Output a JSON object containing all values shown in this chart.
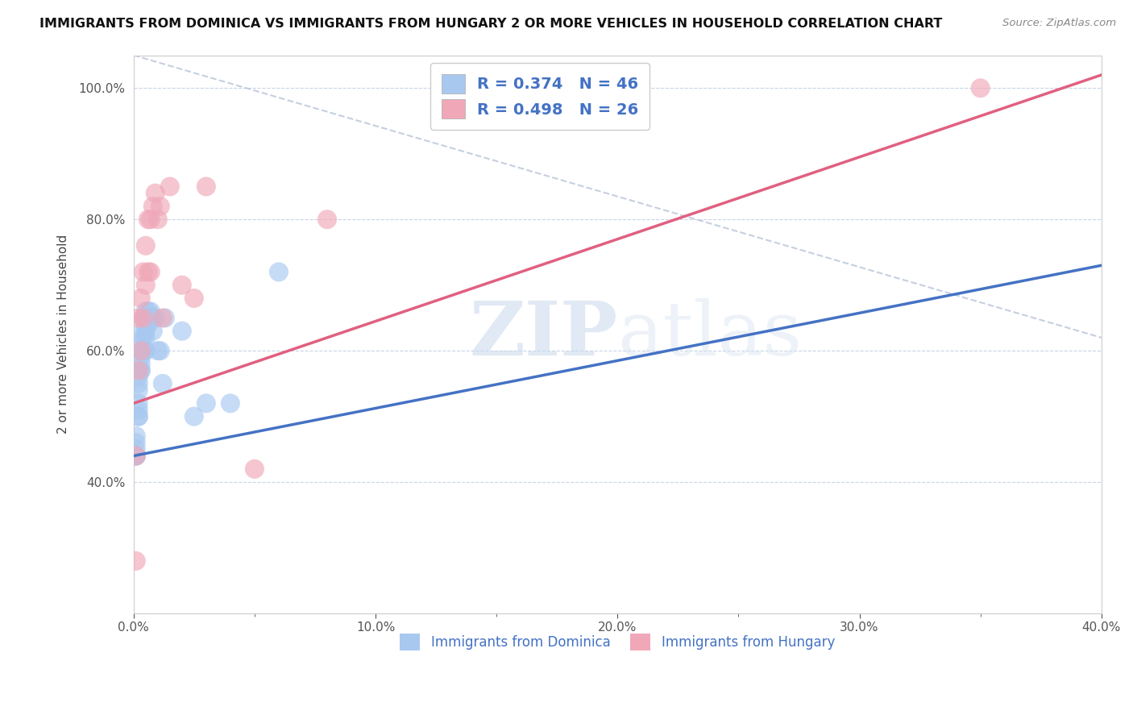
{
  "title": "IMMIGRANTS FROM DOMINICA VS IMMIGRANTS FROM HUNGARY 2 OR MORE VEHICLES IN HOUSEHOLD CORRELATION CHART",
  "source": "Source: ZipAtlas.com",
  "ylabel": "2 or more Vehicles in Household",
  "xlim": [
    0.0,
    0.4
  ],
  "ylim": [
    0.2,
    1.05
  ],
  "xtick_labels": [
    "0.0%",
    "10.0%",
    "20.0%",
    "30.0%",
    "40.0%"
  ],
  "xtick_vals": [
    0.0,
    0.1,
    0.2,
    0.3,
    0.4
  ],
  "ytick_labels": [
    "40.0%",
    "60.0%",
    "80.0%",
    "100.0%"
  ],
  "ytick_vals": [
    0.4,
    0.6,
    0.8,
    1.0
  ],
  "dominica_R": 0.374,
  "dominica_N": 46,
  "hungary_R": 0.498,
  "hungary_N": 26,
  "dominica_color": "#a8c8f0",
  "hungary_color": "#f0a8b8",
  "dominica_line_color": "#4472c4",
  "hungary_line_color": "#e06080",
  "diagonal_color": "#b8c4d8",
  "watermark_zip": "ZIP",
  "watermark_atlas": "atlas",
  "legend_label_1": "Immigrants from Dominica",
  "legend_label_2": "Immigrants from Hungary",
  "dominica_x": [
    0.001,
    0.001,
    0.001,
    0.001,
    0.001,
    0.001,
    0.002,
    0.002,
    0.002,
    0.002,
    0.002,
    0.002,
    0.002,
    0.003,
    0.003,
    0.003,
    0.003,
    0.003,
    0.003,
    0.004,
    0.004,
    0.004,
    0.004,
    0.005,
    0.005,
    0.005,
    0.005,
    0.005,
    0.005,
    0.006,
    0.006,
    0.006,
    0.007,
    0.007,
    0.008,
    0.008,
    0.009,
    0.01,
    0.011,
    0.012,
    0.013,
    0.02,
    0.025,
    0.03,
    0.04,
    0.06
  ],
  "dominica_y": [
    0.44,
    0.44,
    0.44,
    0.45,
    0.46,
    0.47,
    0.5,
    0.5,
    0.51,
    0.52,
    0.54,
    0.55,
    0.56,
    0.57,
    0.57,
    0.58,
    0.59,
    0.6,
    0.61,
    0.6,
    0.62,
    0.63,
    0.65,
    0.6,
    0.62,
    0.63,
    0.64,
    0.65,
    0.66,
    0.64,
    0.65,
    0.66,
    0.65,
    0.66,
    0.63,
    0.65,
    0.65,
    0.6,
    0.6,
    0.55,
    0.65,
    0.63,
    0.5,
    0.52,
    0.52,
    0.72
  ],
  "hungary_x": [
    0.001,
    0.001,
    0.002,
    0.002,
    0.003,
    0.003,
    0.004,
    0.004,
    0.005,
    0.005,
    0.006,
    0.006,
    0.007,
    0.007,
    0.008,
    0.009,
    0.01,
    0.011,
    0.012,
    0.015,
    0.02,
    0.025,
    0.03,
    0.05,
    0.08,
    0.35
  ],
  "hungary_y": [
    0.28,
    0.44,
    0.57,
    0.65,
    0.6,
    0.68,
    0.65,
    0.72,
    0.7,
    0.76,
    0.72,
    0.8,
    0.72,
    0.8,
    0.82,
    0.84,
    0.8,
    0.82,
    0.65,
    0.85,
    0.7,
    0.68,
    0.85,
    0.42,
    0.8,
    1.0
  ],
  "dominica_line_x": [
    0.0,
    0.4
  ],
  "dominica_line_y": [
    0.44,
    0.73
  ],
  "hungary_line_x": [
    0.0,
    0.4
  ],
  "hungary_line_y": [
    0.52,
    1.02
  ]
}
